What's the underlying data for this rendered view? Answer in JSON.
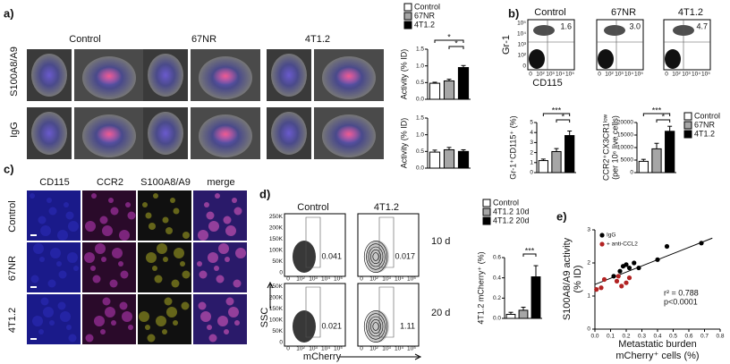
{
  "panel_a": {
    "label": "a)",
    "columns": [
      "Control",
      "67NR",
      "4T1.2"
    ],
    "rows": [
      "S100A8/A9",
      "IgG"
    ],
    "legend": [
      "Control",
      "67NR",
      "4T1.2"
    ],
    "charts": [
      {
        "type": "bar",
        "ylabel": "Activity (% ID)",
        "values": [
          0.48,
          0.55,
          0.95
        ],
        "errors": [
          0.03,
          0.05,
          0.06
        ],
        "colors": [
          "#ffffff",
          "#a6a6a6",
          "#000000"
        ],
        "ylim": [
          0,
          1.5
        ],
        "yticks": [
          {
            "value": 0,
            "label": "0.0"
          },
          {
            "value": 0.5,
            "label": "0.5"
          },
          {
            "value": 1,
            "label": "1.0"
          },
          {
            "value": 1.5,
            "label": "1.5"
          }
        ],
        "significance": [
          "*",
          "*"
        ]
      },
      {
        "type": "bar",
        "ylabel": "Activity (% ID)",
        "values": [
          0.48,
          0.55,
          0.5
        ],
        "errors": [
          0.06,
          0.07,
          0.05
        ],
        "colors": [
          "#ffffff",
          "#a6a6a6",
          "#000000"
        ],
        "ylim": [
          0,
          1.5
        ],
        "yticks": [
          {
            "value": 0,
            "label": "0.0"
          },
          {
            "value": 0.5,
            "label": "0.5"
          },
          {
            "value": 1,
            "label": "1.0"
          },
          {
            "value": 1.5,
            "label": "1.5"
          }
        ]
      }
    ]
  },
  "panel_b": {
    "label": "b)",
    "columns": [
      "Control",
      "67NR",
      "4T1.2"
    ],
    "gate_values": [
      "1.6",
      "3.0",
      "4.7"
    ],
    "ylabel": "Gr-1",
    "xlabel": "CD115",
    "flow_ticks": [
      "0",
      "10²",
      "10³",
      "10⁴",
      "10⁵"
    ],
    "legend": [
      "Control",
      "67NR",
      "4T1.2"
    ],
    "charts": [
      {
        "type": "bar",
        "ylabel": "Gr-1⁺CD115⁺ (%)",
        "values": [
          1.2,
          2.1,
          3.7
        ],
        "errors": [
          0.15,
          0.3,
          0.45
        ],
        "colors": [
          "#ffffff",
          "#a6a6a6",
          "#000000"
        ],
        "ylim": [
          0,
          5
        ],
        "yticks": [
          0,
          1,
          2,
          3,
          4,
          5
        ],
        "significance": [
          "***",
          "*"
        ]
      },
      {
        "type": "bar",
        "ylabel": "CCR2⁺CX3CR1ˡᵒʷ",
        "ylabel2": "(per 10⁶ live cells)",
        "values": [
          4500,
          9500,
          16500
        ],
        "errors": [
          800,
          2200,
          2000
        ],
        "colors": [
          "#ffffff",
          "#a6a6a6",
          "#000000"
        ],
        "ylim": [
          0,
          20000
        ],
        "yticks": [
          0,
          5000,
          10000,
          15000,
          20000
        ],
        "significance": [
          "***",
          "*"
        ]
      }
    ]
  },
  "panel_c": {
    "label": "c)",
    "columns": [
      "CD115",
      "CCR2",
      "S100A8/A9",
      "merge"
    ],
    "rows": [
      "Control",
      "67NR",
      "4T1.2"
    ]
  },
  "panel_d": {
    "label": "d)",
    "columns": [
      "Control",
      "4T1.2"
    ],
    "rows": [
      "10 d",
      "20 d"
    ],
    "gate_values": [
      "0.041",
      "0.017",
      "0.021",
      "1.11"
    ],
    "ylabel": "SSC",
    "xlabel": "mCherry",
    "y_ticks": [
      "0",
      "50K",
      "100K",
      "150K",
      "200K",
      "250K"
    ],
    "x_ticks": [
      "0",
      "10²",
      "10³",
      "10⁴",
      "10⁵"
    ],
    "legend": [
      "Control",
      "4T1.2 10d",
      "4T1.2 20d"
    ],
    "chart": {
      "type": "bar",
      "ylabel": "4T1.2 mCherry⁺ (%)",
      "values": [
        0.04,
        0.08,
        0.41
      ],
      "errors": [
        0.02,
        0.03,
        0.11
      ],
      "colors": [
        "#ffffff",
        "#a6a6a6",
        "#000000"
      ],
      "ylim": [
        0,
        0.6
      ],
      "yticks": [
        {
          "value": 0,
          "label": "0.0"
        },
        {
          "value": 0.2,
          "label": "0.2"
        },
        {
          "value": 0.4,
          "label": "0.4"
        },
        {
          "value": 0.6,
          "label": "0.6"
        }
      ],
      "significance": [
        "***"
      ]
    }
  },
  "panel_e": {
    "label": "e)",
    "chart": {
      "type": "scatter",
      "ylabel": "S100A8/A9 activity",
      "ylabel2": "(% ID)",
      "xlabel": "Metastatic burden",
      "xlabel2": "mCherry⁺ cells (%)",
      "annotations": [
        "r² = 0.788",
        "p<0.0001"
      ],
      "series": [
        {
          "name": "IgG",
          "color": "#000000",
          "x": [
            0.12,
            0.16,
            0.18,
            0.2,
            0.22,
            0.25,
            0.28,
            0.4,
            0.46,
            0.68
          ],
          "values": [
            1.6,
            1.75,
            1.9,
            1.95,
            1.85,
            2.0,
            1.85,
            2.1,
            2.5,
            2.6
          ]
        },
        {
          "name": "+ anti-CCL2",
          "color": "#b22222",
          "x": [
            0.01,
            0.04,
            0.06,
            0.14,
            0.15,
            0.17,
            0.2,
            0.22
          ],
          "values": [
            1.2,
            1.25,
            1.5,
            1.45,
            1.6,
            1.3,
            1.4,
            1.55
          ]
        }
      ],
      "fit": {
        "x": [
          0,
          0.75
        ],
        "values": [
          1.35,
          2.75
        ]
      },
      "xlim": [
        0,
        0.8
      ],
      "xticks": [
        {
          "value": 0,
          "label": "0.0"
        },
        {
          "value": 0.1,
          "label": "0.1"
        },
        {
          "value": 0.2,
          "label": "0.2"
        },
        {
          "value": 0.3,
          "label": "0.3"
        },
        {
          "value": 0.4,
          "label": "0.4"
        },
        {
          "value": 0.5,
          "label": "0.5"
        },
        {
          "value": 0.6,
          "label": "0.6"
        },
        {
          "value": 0.7,
          "label": "0.7"
        },
        {
          "value": 0.8,
          "label": "0.8"
        }
      ],
      "ylim": [
        0,
        3
      ],
      "yticks": [
        0,
        1,
        2,
        3
      ]
    }
  }
}
